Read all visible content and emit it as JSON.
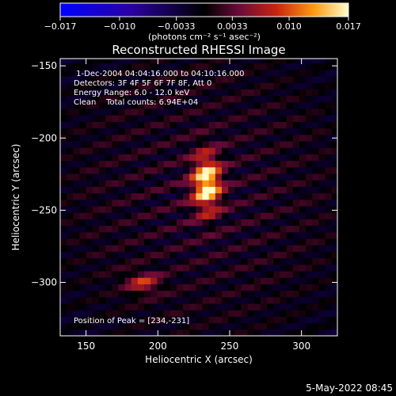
{
  "chart_data": {
    "type": "heatmap",
    "title": "Reconstructed RHESSI Image",
    "xlabel": "Heliocentric X (arcsec)",
    "ylabel": "Heliocentric Y (arcsec)",
    "xlim": [
      132,
      325
    ],
    "ylim": [
      -337,
      -145
    ],
    "xticks": [
      150,
      200,
      250,
      300
    ],
    "yticks": [
      -150,
      -200,
      -250,
      -300
    ],
    "colorbar": {
      "min": -0.017,
      "max": 0.017,
      "tick_values": [
        -0.017,
        -0.01,
        -0.0033,
        0.0033,
        0.01,
        0.017
      ],
      "tick_labels": [
        "−0.017",
        "−0.010",
        "−0.0033",
        "0.0033",
        "0.010",
        "0.017"
      ],
      "units_label": "(photons cm⁻² s⁻¹ asec⁻²)"
    },
    "sources": [
      {
        "x": 234,
        "y": -231,
        "peak": 0.017,
        "sx": 7,
        "sy": 14
      },
      {
        "x": 190,
        "y": -300,
        "peak": 0.008,
        "sx": 8,
        "sy": 5
      }
    ],
    "annotations": [
      " 1-Dec-2004 04:04:16.000 to 04:10:16.000",
      "Detectors: 3F 4F 5F 6F 7F 8F, Att 0",
      "Energy Range: 6.0 - 12.0 keV",
      "Clean    Total counts: 6.94E+04"
    ],
    "peak_label": "Position of Peak = [234,-231]",
    "timestamp": "5-May-2022 08:45"
  }
}
